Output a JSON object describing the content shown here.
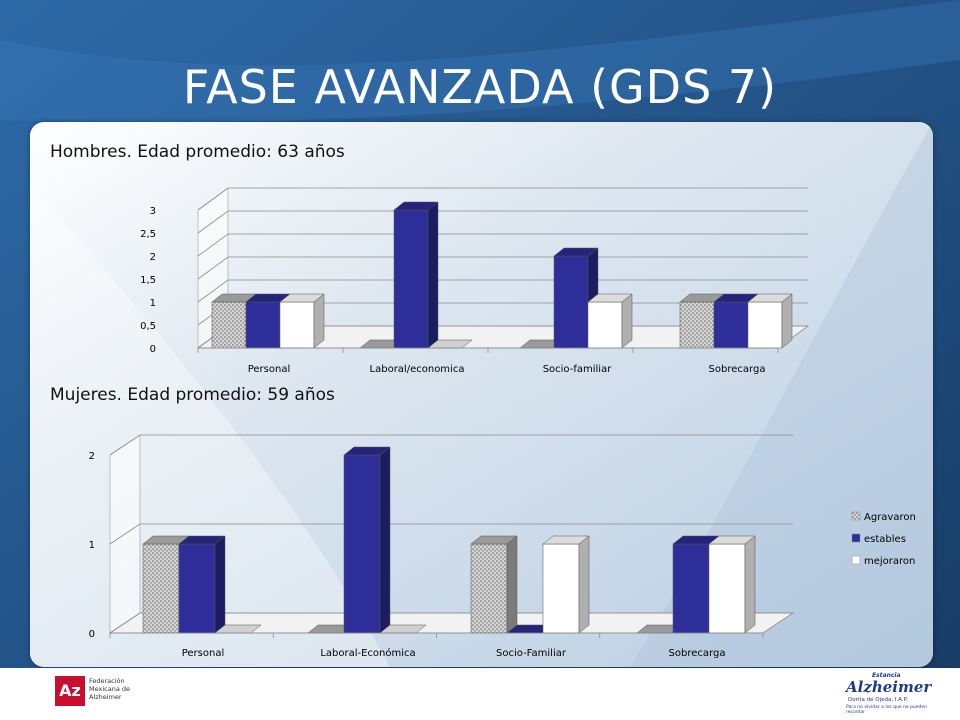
{
  "slide_title": "FASE AVANZADA (GDS 7)",
  "colors": {
    "background": "#1f4d7f",
    "agravaron": "#bdbdbd",
    "estables": "#2e2e9a",
    "mejoraron": "#ffffff"
  },
  "chart_data": [
    {
      "type": "bar",
      "title": "Hombres. Edad promedio: 63 años",
      "categories": [
        "Personal",
        "Laboral/economica",
        "Socio-familiar",
        "Sobrecarga"
      ],
      "series": [
        {
          "values": [
            1,
            0,
            0,
            1
          ]
        },
        {
          "values": [
            1,
            3,
            2,
            1
          ]
        },
        {
          "values": [
            1,
            0,
            1,
            1
          ]
        }
      ],
      "yticks": [
        "0",
        "0,5",
        "1",
        "1,5",
        "2",
        "2,5",
        "3"
      ],
      "ylim": [
        0,
        3
      ],
      "grid": true,
      "legend": false
    },
    {
      "type": "bar",
      "title": "Mujeres. Edad promedio: 59 años",
      "categories": [
        "Personal",
        "Laboral-Económica",
        "Socio-Familiar",
        "Sobrecarga"
      ],
      "series": [
        {
          "name": "Agravaron",
          "values": [
            1,
            0,
            1,
            0
          ]
        },
        {
          "name": "estables",
          "values": [
            1,
            2,
            0,
            1
          ]
        },
        {
          "name": "mejoraron",
          "values": [
            0,
            0,
            1,
            1
          ]
        }
      ],
      "yticks": [
        "0",
        "1",
        "2"
      ],
      "ylim": [
        0,
        2
      ],
      "grid": true,
      "legend": "right"
    }
  ],
  "footer": {
    "left_logo": {
      "mark": "Az",
      "lines": [
        "Federación",
        "Mexicana de",
        "Alzheimer"
      ]
    },
    "right_logo": {
      "top": "Estancia",
      "main": "Alzheimer",
      "sub": "Dorita de Ojeda, I.A.P.",
      "tagline": "Para no olvidar a los que no pueden recordar"
    }
  }
}
